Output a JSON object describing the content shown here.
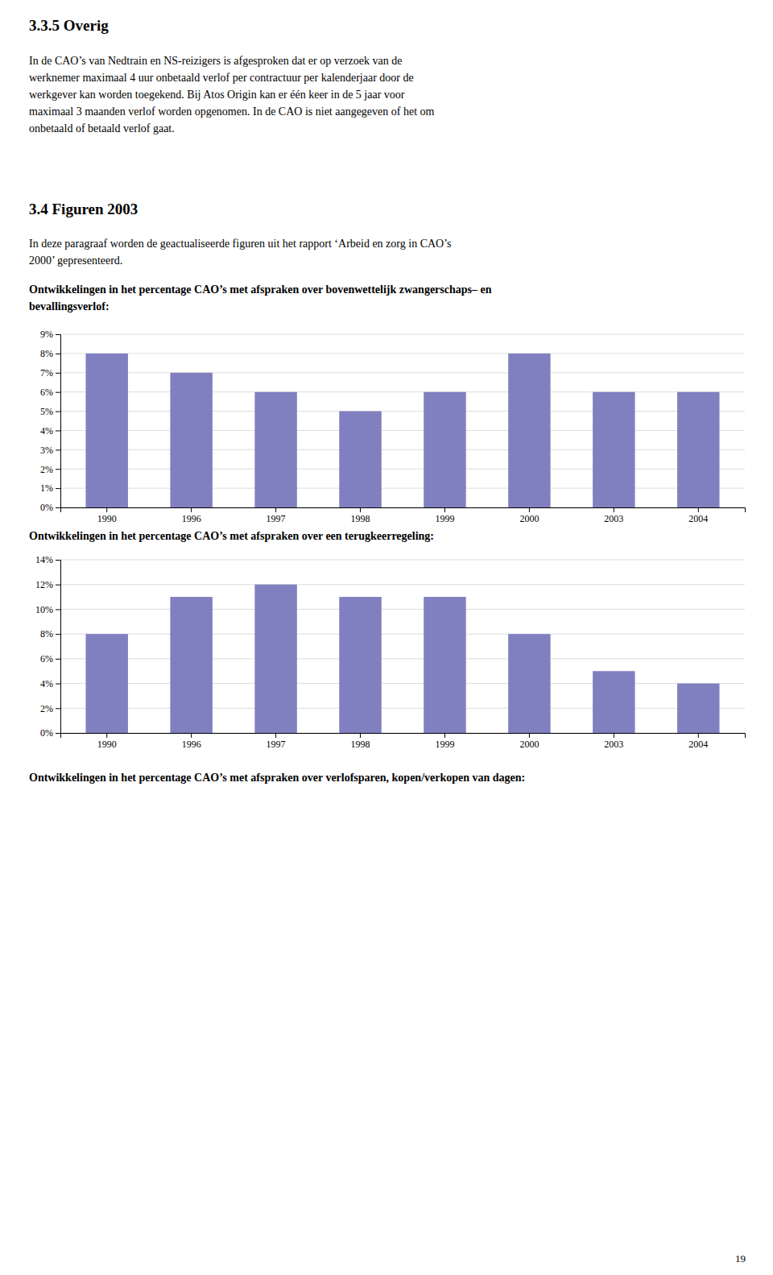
{
  "page_title": "3.3.5  Overig",
  "para1_lines": [
    "In de CAO’s van Nedtrain en NS-reizigers is afgesproken dat er op verzoek van de",
    "werknemer maximaal 4 uur onbetaald verlof per contractuur per kalenderjaar door de",
    "werkgever kan worden toegekend. Bij Atos Origin kan er één keer in de 5 jaar voor",
    "maximaal 3 maanden verlof worden opgenomen. In de  CAO is niet aangegeven of het om",
    "onbetaald of  betaald verlof gaat."
  ],
  "section_title": "3.4    Figuren 2003",
  "para2_lines": [
    "In deze paragraaf worden de geactualiseerde figuren uit het rapport ‘Arbeid en zorg in CAO’s",
    "2000’ gepresenteerd."
  ],
  "chart3_title": "Ontwikkelingen in het percentage CAO’s met afspraken over verlofsparen, kopen/verkopen van dagen:",
  "page_number": "19",
  "chart_data": [
    {
      "type": "bar",
      "title": "Ontwikkelingen in het percentage CAO’s met afspraken over bovenwettelijk zwangerschaps– en\nbevallingsverlof:",
      "categories": [
        "1990",
        "1996",
        "1997",
        "1998",
        "1999",
        "2000",
        "2003",
        "2004"
      ],
      "values": [
        8,
        7,
        6,
        5,
        6,
        8,
        6,
        6
      ],
      "color": "#8080C0",
      "ylim": [
        0,
        9
      ],
      "yticks": [
        {
          "value": 0,
          "label": "0%"
        },
        {
          "value": 1,
          "label": "1%"
        },
        {
          "value": 2,
          "label": "2%"
        },
        {
          "value": 3,
          "label": "3%"
        },
        {
          "value": 4,
          "label": "4%"
        },
        {
          "value": 5,
          "label": "5%"
        },
        {
          "value": 6,
          "label": "6%"
        },
        {
          "value": 7,
          "label": "7%"
        },
        {
          "value": 8,
          "label": "8%"
        },
        {
          "value": 9,
          "label": "9%"
        }
      ],
      "grid": true
    },
    {
      "type": "bar",
      "title": "Ontwikkelingen in het percentage CAO’s met afspraken over een terugkeerregeling:",
      "categories": [
        "1990",
        "1996",
        "1997",
        "1998",
        "1999",
        "2000",
        "2003",
        "2004"
      ],
      "values": [
        8,
        11,
        12,
        11,
        11,
        8,
        5,
        4
      ],
      "color": "#8080C0",
      "ylim": [
        0,
        14
      ],
      "yticks": [
        {
          "value": 0,
          "label": "0%"
        },
        {
          "value": 2,
          "label": "2%"
        },
        {
          "value": 4,
          "label": "4%"
        },
        {
          "value": 6,
          "label": "6%"
        },
        {
          "value": 8,
          "label": "8%"
        },
        {
          "value": 10,
          "label": "10%"
        },
        {
          "value": 12,
          "label": "12%"
        },
        {
          "value": 14,
          "label": "14%"
        }
      ],
      "grid": true
    }
  ]
}
